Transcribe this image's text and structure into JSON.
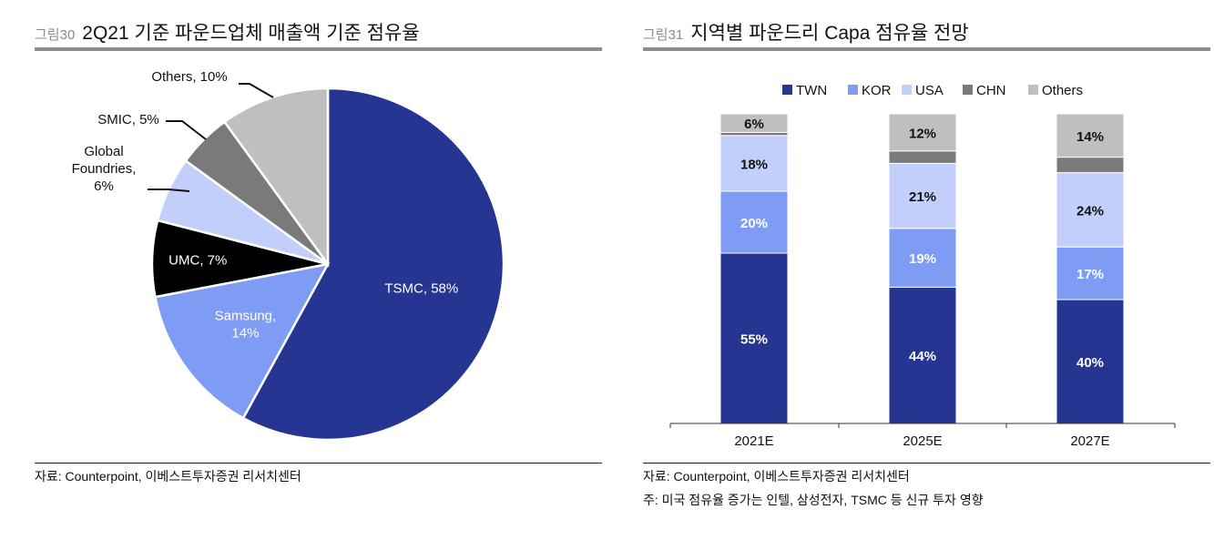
{
  "left": {
    "fig_num": "그림30",
    "title": "2Q21 기준 파운드업체 매출액 기준 점유율",
    "source": "자료: Counterpoint, 이베스트투자증권 리서치센터"
  },
  "right": {
    "fig_num": "그림31",
    "title": "지역별 파운드리 Capa 점유율 전망",
    "source": "자료: Counterpoint, 이베스트투자증권 리서치센터",
    "note": "주: 미국 점유율 증가는 인텔, 삼성전자, TSMC 등 신규 투자 영향"
  },
  "chart_data": [
    {
      "type": "pie",
      "title": "2Q21 기준 파운드업체 매출액 기준 점유율",
      "slices": [
        {
          "name": "TSMC",
          "value": 58,
          "color": "#263592",
          "label_lines": [
            "TSMC, 58%"
          ],
          "label_color": "#ffffff"
        },
        {
          "name": "Samsung",
          "value": 14,
          "color": "#7f9cf5",
          "label_lines": [
            "Samsung,",
            "14%"
          ],
          "label_color": "#ffffff"
        },
        {
          "name": "UMC",
          "value": 7,
          "color": "#000000",
          "label_lines": [
            "UMC, 7%"
          ],
          "label_color": "#ffffff"
        },
        {
          "name": "Global Foundries",
          "value": 6,
          "color": "#c3cffb",
          "label_lines": [
            "Global",
            "Foundries,",
            "6%"
          ],
          "label_color": "#111111"
        },
        {
          "name": "SMIC",
          "value": 5,
          "color": "#7a7a7a",
          "label_lines": [
            "SMIC, 5%"
          ],
          "label_color": "#111111"
        },
        {
          "name": "Others",
          "value": 10,
          "color": "#bfbfbf",
          "label_lines": [
            "Others, 10%"
          ],
          "label_color": "#111111"
        }
      ]
    },
    {
      "type": "bar",
      "stacked": true,
      "title": "지역별 파운드리 Capa 점유율 전망",
      "categories": [
        "2021E",
        "2025E",
        "2027E"
      ],
      "series": [
        {
          "name": "TWN",
          "color": "#263592",
          "values": [
            55,
            44,
            40
          ],
          "labels": [
            "55%",
            "44%",
            "40%"
          ],
          "label_color": "#ffffff"
        },
        {
          "name": "KOR",
          "color": "#7f9cf5",
          "values": [
            20,
            19,
            17
          ],
          "labels": [
            "20%",
            "19%",
            "17%"
          ],
          "label_color": "#ffffff"
        },
        {
          "name": "USA",
          "color": "#c3cffb",
          "values": [
            18,
            21,
            24
          ],
          "labels": [
            "18%",
            "21%",
            "24%"
          ],
          "label_color": "#111111"
        },
        {
          "name": "CHN",
          "color": "#7a7a7a",
          "values": [
            1,
            4,
            5
          ],
          "labels": [
            "",
            "",
            ""
          ],
          "label_color": "#111111"
        },
        {
          "name": "Others",
          "color": "#bfbfbf",
          "values": [
            6,
            12,
            14
          ],
          "labels": [
            "6%",
            "12%",
            "14%"
          ],
          "label_color": "#111111"
        }
      ],
      "ylim": [
        0,
        100
      ],
      "legend": "top"
    }
  ]
}
